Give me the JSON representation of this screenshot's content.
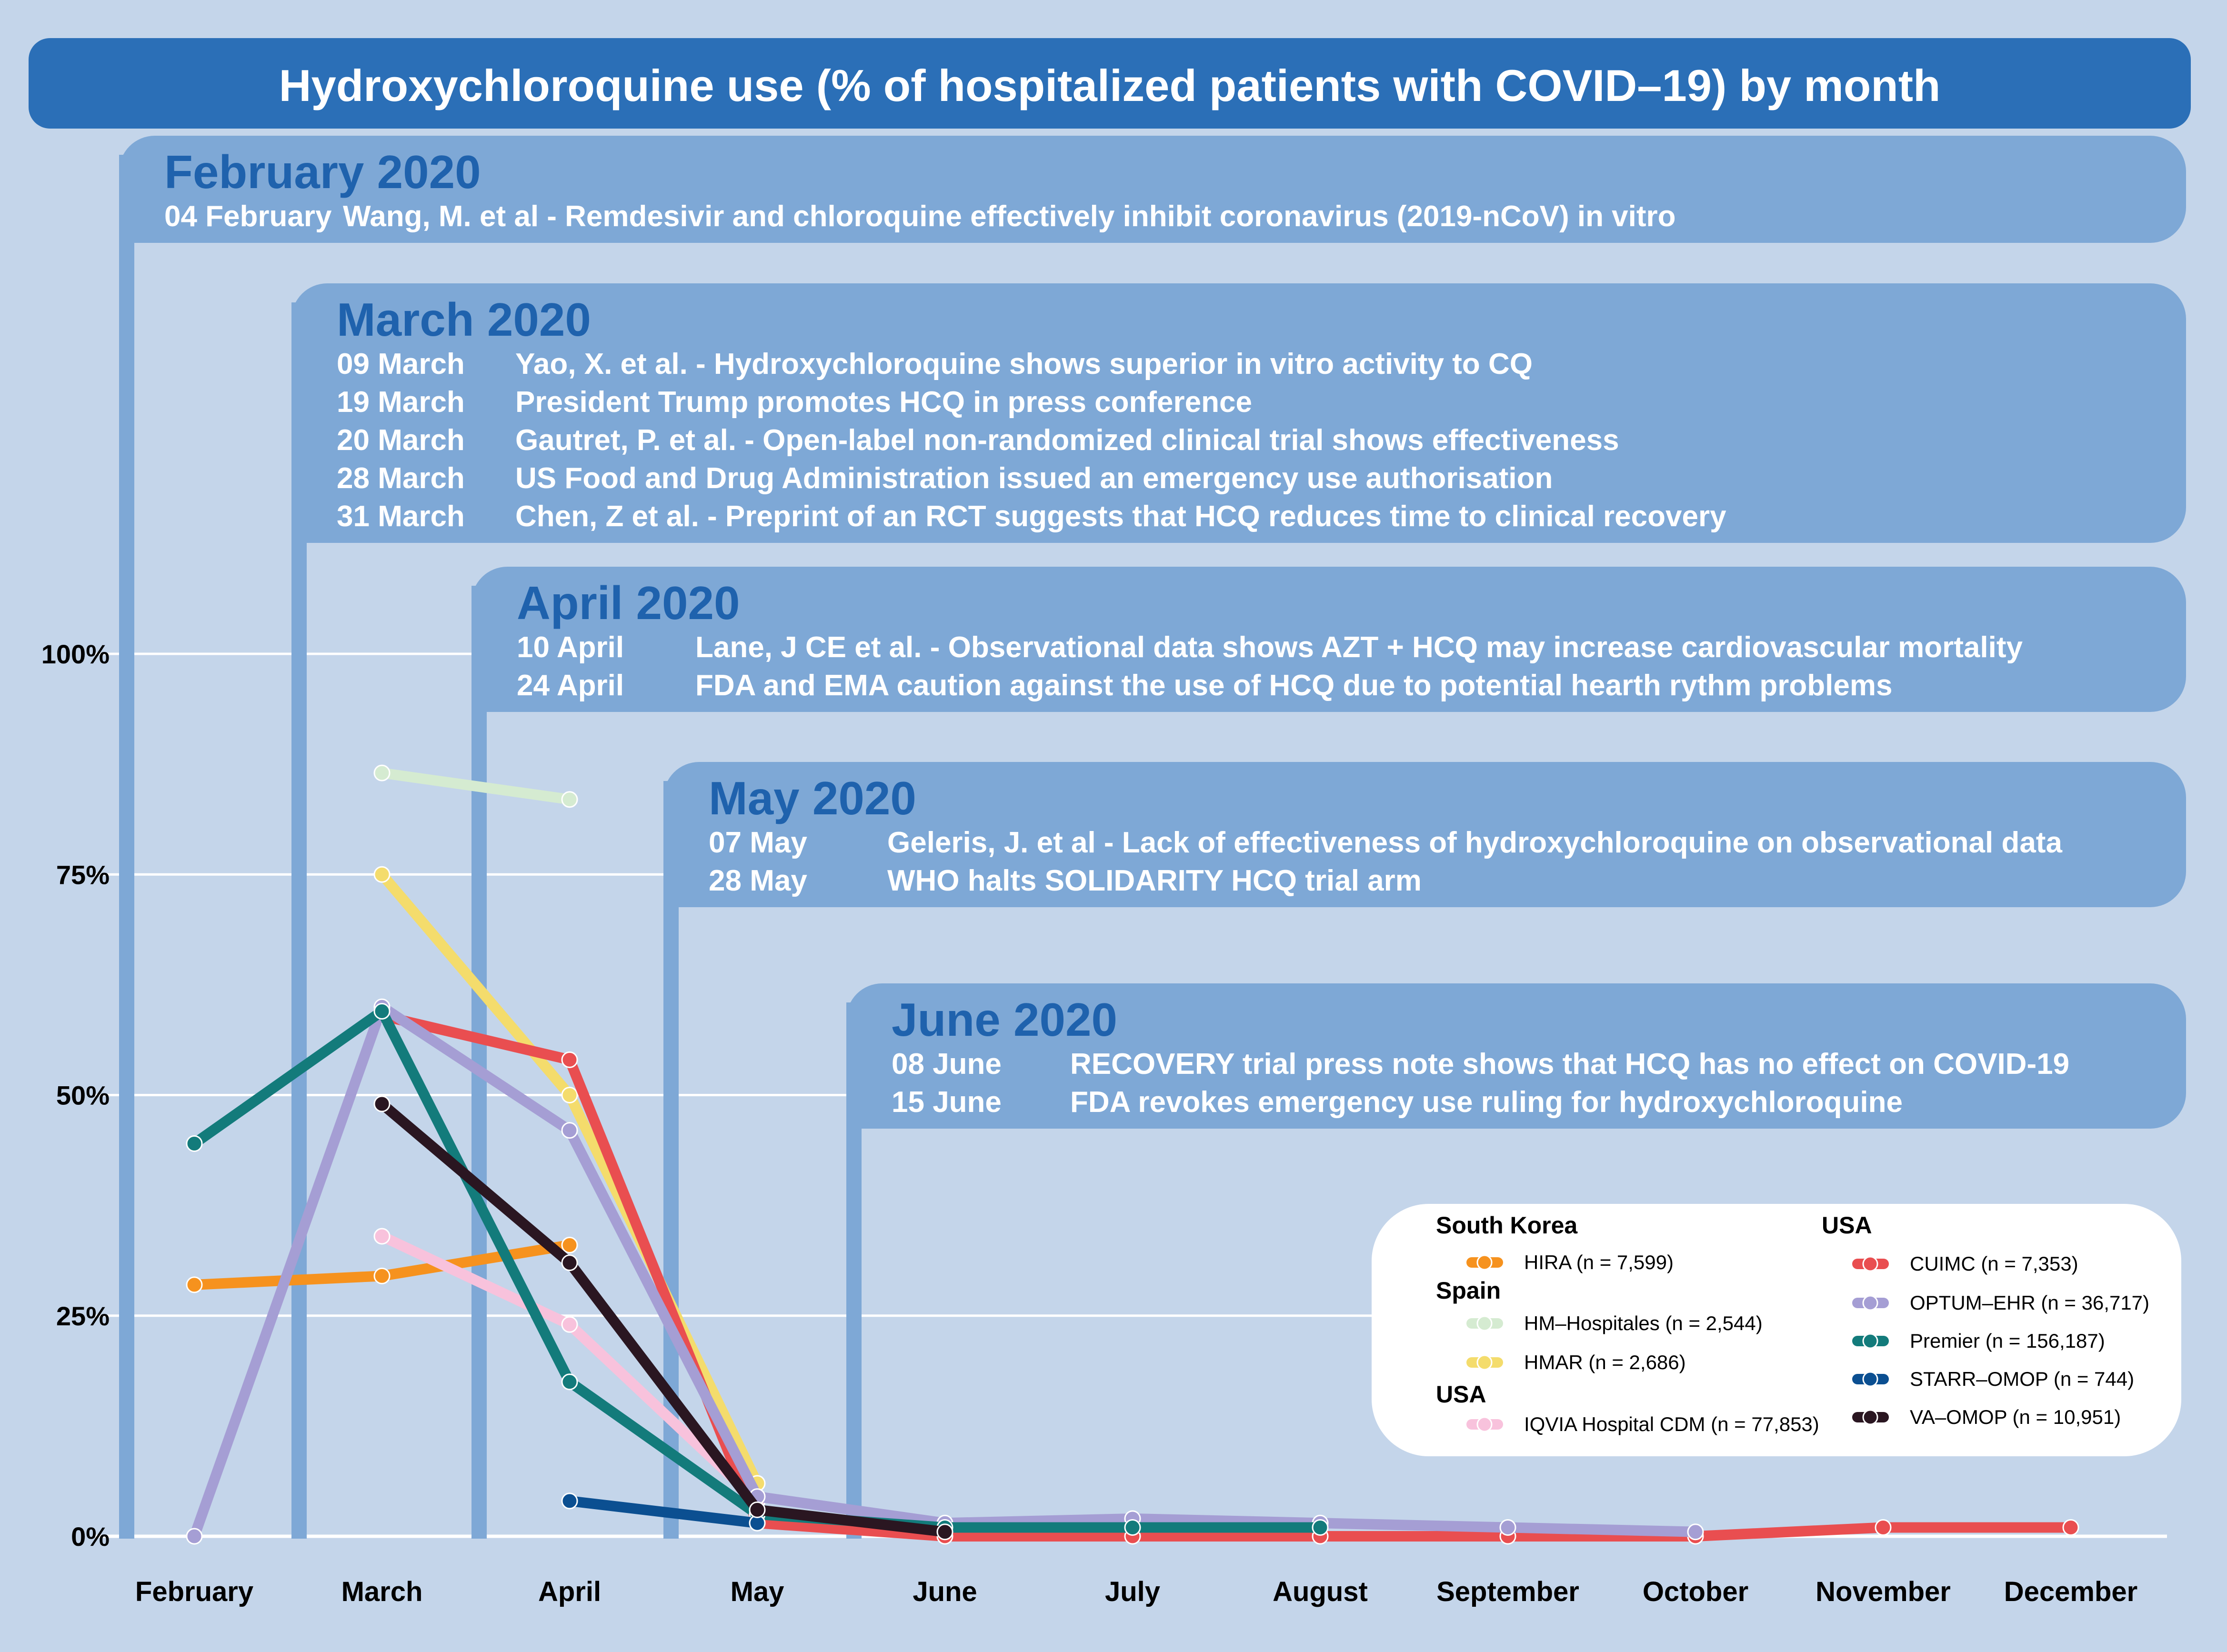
{
  "chart_data": {
    "type": "line",
    "title": "Hydroxychloroquine use (% of hospitalized patients with COVID–19) by month",
    "categories": [
      "February",
      "March",
      "April",
      "May",
      "June",
      "July",
      "August",
      "September",
      "October",
      "November",
      "December"
    ],
    "y_ticks": [
      "0%",
      "25%",
      "50%",
      "75%",
      "100%"
    ],
    "y_tick_values": [
      0,
      25,
      50,
      75,
      100
    ],
    "ylim": [
      0,
      100
    ],
    "grid": true,
    "legend_position": "bottom-right",
    "events": [
      {
        "month": "February 2020",
        "start_category": 0,
        "items": [
          {
            "date": "04 February",
            "text": "Wang, M. et al - Remdesivir and chloroquine effectively inhibit coronavirus (2019-nCoV) in vitro"
          }
        ]
      },
      {
        "month": "March 2020",
        "start_category": 1,
        "items": [
          {
            "date": "09 March",
            "text": "Yao, X. et al. - Hydroxychloroquine shows superior in vitro activity to CQ"
          },
          {
            "date": "19 March",
            "text": "President Trump promotes HCQ in press conference"
          },
          {
            "date": "20 March",
            "text": "Gautret, P. et al. - Open-label non-randomized clinical trial shows effectiveness"
          },
          {
            "date": "28 March",
            "text": "US Food and Drug Administration issued an emergency use authorisation"
          },
          {
            "date": "31 March",
            "text": "Chen, Z et al. -  Preprint of an RCT suggests that HCQ reduces time to clinical recovery"
          }
        ]
      },
      {
        "month": "April 2020",
        "start_category": 2,
        "items": [
          {
            "date": "10 April",
            "text": "Lane, J CE et al. - Observational data shows AZT + HCQ may increase cardiovascular mortality"
          },
          {
            "date": "24 April",
            "text": "FDA and EMA caution against the use of HCQ due to potential hearth rythm problems"
          }
        ]
      },
      {
        "month": "May 2020",
        "start_category": 3,
        "items": [
          {
            "date": "07 May",
            "text": "Geleris, J.  et al - Lack of effectiveness of hydroxychloroquine on observational data"
          },
          {
            "date": "28 May",
            "text": "WHO halts SOLIDARITY HCQ trial arm"
          }
        ]
      },
      {
        "month": "June 2020",
        "start_category": 4,
        "items": [
          {
            "date": "08 June",
            "text": "RECOVERY trial press note shows that HCQ has no effect on COVID-19"
          },
          {
            "date": "15 June",
            "text": "FDA revokes emergency use ruling for hydroxychloroquine"
          }
        ]
      }
    ],
    "series": [
      {
        "name": "HIRA (n = 7,599)",
        "group": "South Korea",
        "color": "#f6921e",
        "values": [
          28.5,
          29.5,
          33,
          null,
          null,
          null,
          null,
          null,
          null,
          null,
          null
        ]
      },
      {
        "name": "HM–Hospitales (n = 2,544)",
        "group": "Spain",
        "color": "#d5ebd1",
        "values": [
          null,
          86.5,
          83.5,
          null,
          null,
          null,
          null,
          null,
          null,
          null,
          null
        ]
      },
      {
        "name": "HMAR (n = 2,686)",
        "group": "Spain",
        "color": "#f4dc6c",
        "values": [
          null,
          75,
          50,
          6,
          null,
          null,
          null,
          null,
          null,
          null,
          null
        ]
      },
      {
        "name": "IQVIA Hospital CDM (n = 77,853)",
        "group": "USA",
        "color": "#f8c2dc",
        "values": [
          null,
          34,
          24,
          4,
          null,
          null,
          null,
          null,
          null,
          null,
          null
        ]
      },
      {
        "name": "CUIMC (n = 7,353)",
        "group": "USA",
        "color": "#e94e50",
        "values": [
          null,
          59,
          54,
          1.5,
          0,
          0,
          0,
          0,
          0,
          1,
          1
        ]
      },
      {
        "name": "OPTUM–EHR (n = 36,717)",
        "group": "USA",
        "color": "#a59ed4",
        "values": [
          0,
          60,
          46,
          4.5,
          1.5,
          2,
          1.5,
          1,
          0.5,
          null,
          null
        ]
      },
      {
        "name": "Premier (n = 156,187)",
        "group": "USA",
        "color": "#137b7b",
        "values": [
          44.5,
          59.5,
          17.5,
          2.5,
          1,
          1,
          1,
          null,
          null,
          null,
          null
        ]
      },
      {
        "name": "STARR–OMOP (n = 744)",
        "group": "USA",
        "color": "#0b4f91",
        "values": [
          null,
          null,
          4,
          1.5,
          null,
          null,
          null,
          null,
          null,
          null,
          null
        ]
      },
      {
        "name": "VA–OMOP (n = 10,951)",
        "group": "USA",
        "color": "#2a1621",
        "values": [
          null,
          49,
          31,
          3,
          0.5,
          null,
          null,
          null,
          null,
          null,
          null
        ]
      }
    ],
    "legend": {
      "columns": [
        [
          {
            "type": "group",
            "label": "South Korea"
          },
          {
            "type": "item",
            "series": 0
          },
          {
            "type": "group",
            "label": "Spain"
          },
          {
            "type": "item",
            "series": 1
          },
          {
            "type": "item",
            "series": 2
          },
          {
            "type": "group",
            "label": "USA"
          },
          {
            "type": "item",
            "series": 3
          }
        ],
        [
          {
            "type": "group",
            "label": "USA"
          },
          {
            "type": "item",
            "series": 4
          },
          {
            "type": "item",
            "series": 5
          },
          {
            "type": "item",
            "series": 6
          },
          {
            "type": "item",
            "series": 7
          },
          {
            "type": "item",
            "series": 8
          }
        ]
      ]
    },
    "colors": {
      "background": "#c4d5ea",
      "banner": "#2b6fb7",
      "panel": "#7ea8d6",
      "event_heading": "#1f62ad",
      "grid": "#ffffff"
    }
  }
}
